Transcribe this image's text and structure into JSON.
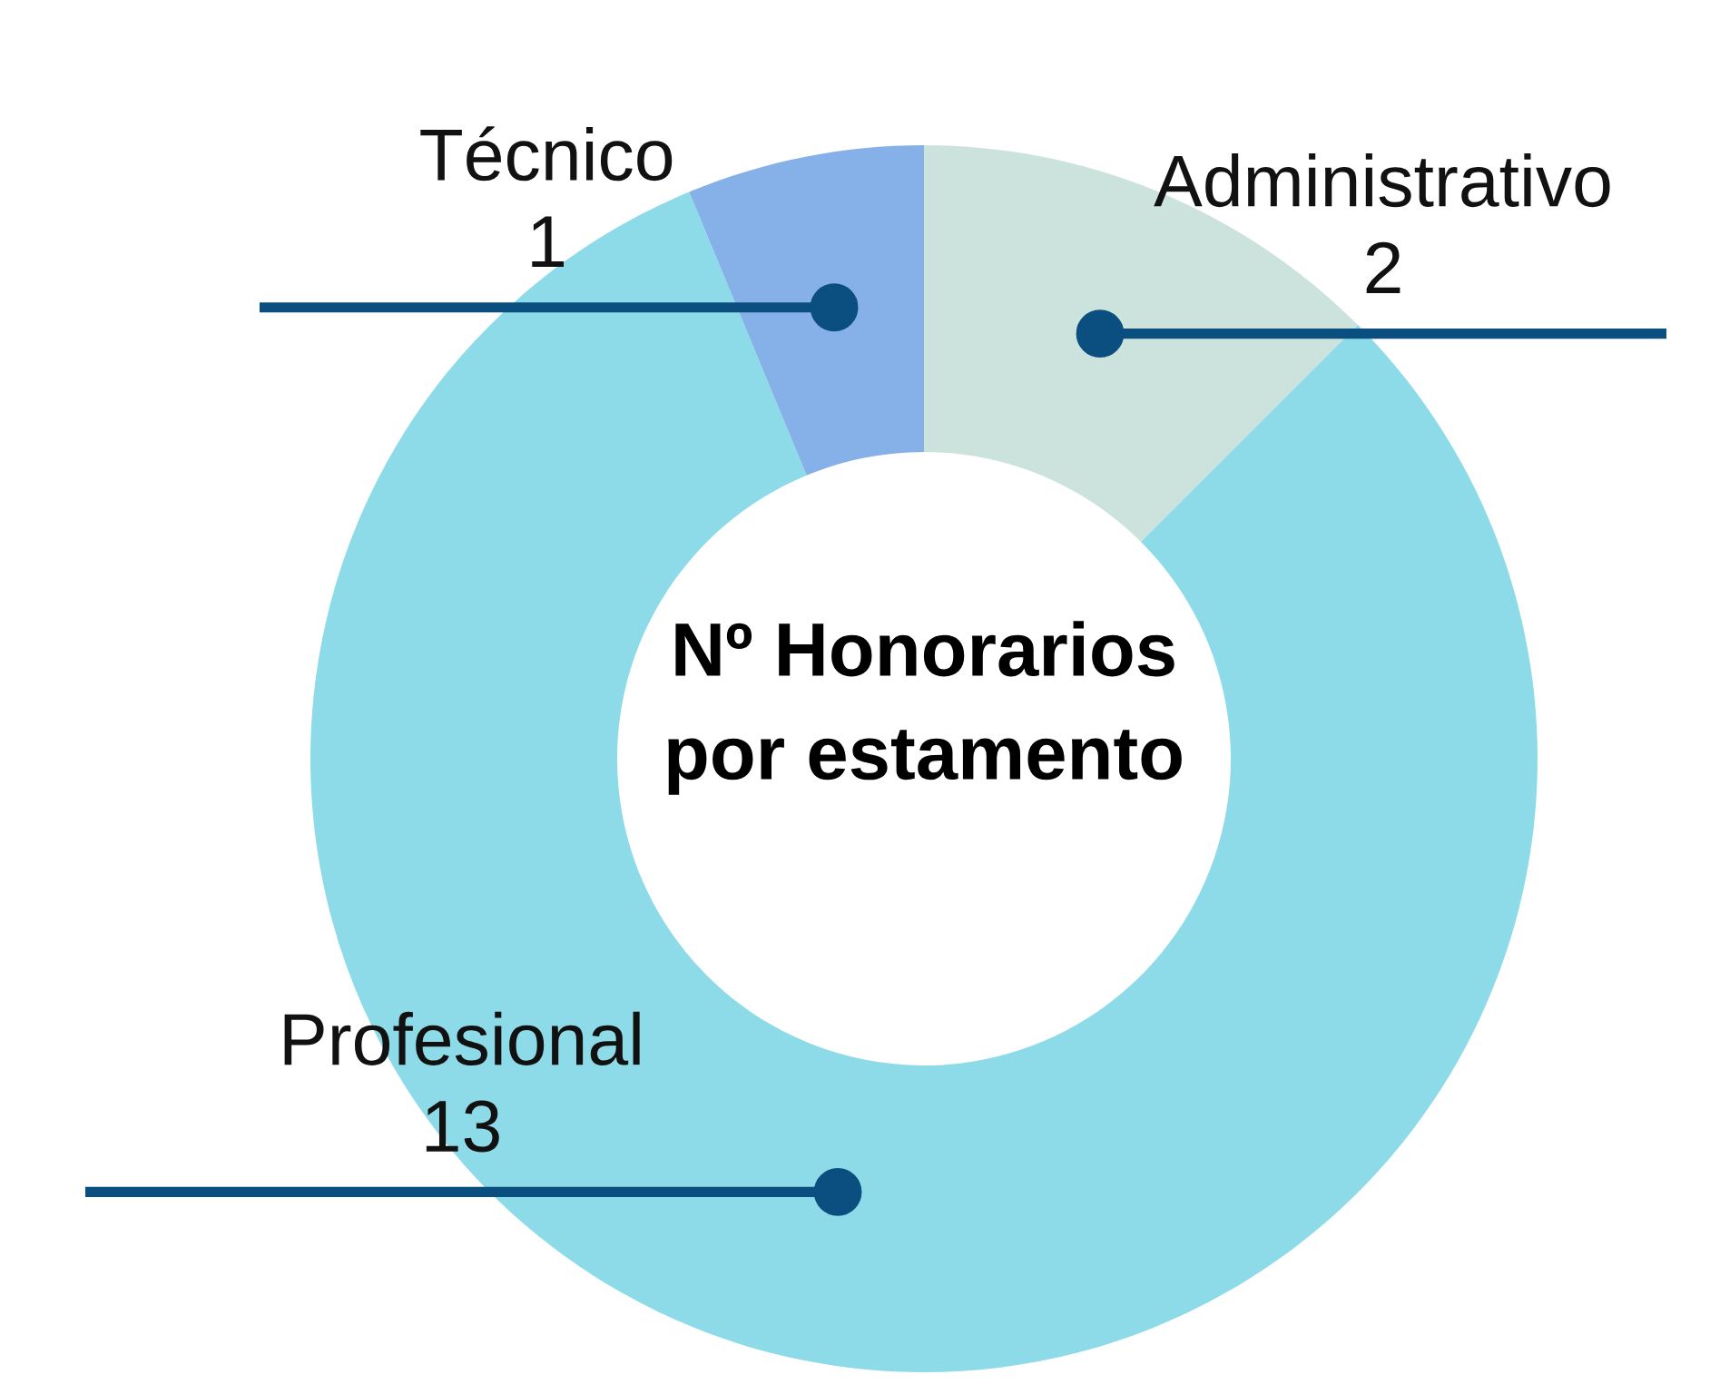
{
  "chart_data": {
    "type": "donut",
    "title": "Nº Honorarios\npor estamento",
    "categories": [
      "Administrativo",
      "Profesional",
      "Técnico"
    ],
    "values": [
      2,
      13,
      1
    ],
    "colors": [
      "#cbe3dc",
      "#8ddbe8",
      "#86b0e8"
    ],
    "data_labels": true,
    "legend": false
  }
}
